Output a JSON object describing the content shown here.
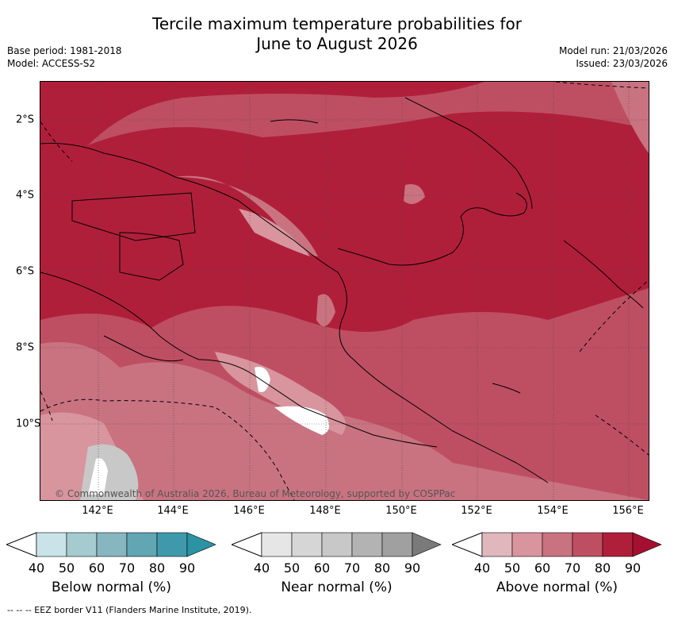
{
  "title_line1": "Tercile maximum temperature probabilities for",
  "title_line2": "June to August 2026",
  "base_period": "Base period: 1981-2018",
  "model": "Model: ACCESS-S2",
  "model_run": "Model run: 21/03/2026",
  "issued": "Issued: 23/03/2026",
  "copyright": "© Commonwealth of Australia 2026, Bureau of Meteorology, supported by COSPPac",
  "x_ticks": [
    "142°E",
    "144°E",
    "146°E",
    "148°E",
    "150°E",
    "152°E",
    "154°E",
    "156°E"
  ],
  "y_ticks": [
    "2°S",
    "4°S",
    "6°S",
    "8°S",
    "10°S"
  ],
  "colorbars": [
    {
      "title": "Below normal (%)",
      "labels": [
        "40",
        "50",
        "60",
        "70",
        "80",
        "90"
      ],
      "colors": [
        "#c9e3e8",
        "#a5cbd1",
        "#88b6c0",
        "#62a5b3",
        "#3e9aab",
        "#2b93a4"
      ]
    },
    {
      "title": "Near normal (%)",
      "labels": [
        "40",
        "50",
        "60",
        "70",
        "80",
        "90"
      ],
      "colors": [
        "#e6e6e6",
        "#d6d6d6",
        "#c8c8c8",
        "#b3b3b3",
        "#a0a0a0",
        "#7a7a7a"
      ]
    },
    {
      "title": "Above normal (%)",
      "labels": [
        "40",
        "50",
        "60",
        "70",
        "80",
        "90"
      ],
      "colors": [
        "#e0b7bd",
        "#d8959e",
        "#c97380",
        "#be4f62",
        "#b01f3a",
        "#a51030"
      ]
    }
  ],
  "footer": "--  --  -- EEZ border V11 (Flanders Marine Institute, 2019)."
}
